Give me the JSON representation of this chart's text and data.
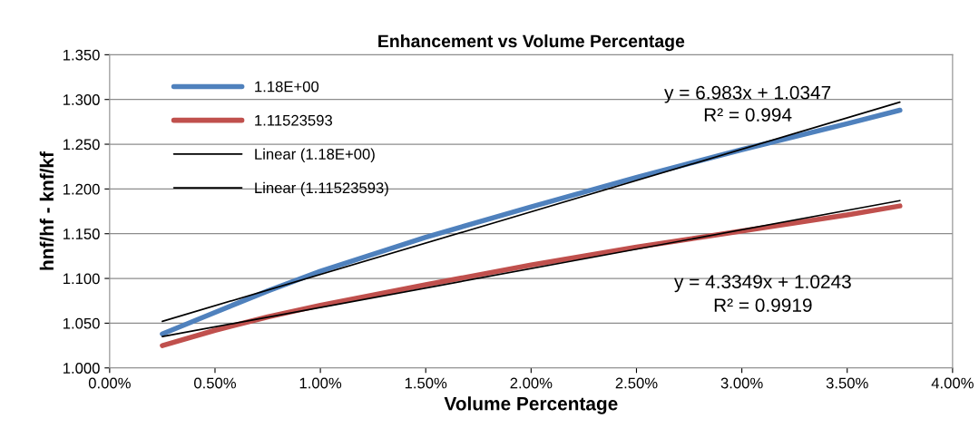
{
  "chart_data": {
    "type": "line",
    "title": "Enhancement vs Volume Percentage",
    "xlabel": "Volume Percentage",
    "ylabel": "hnf/hf - knf/kf",
    "series": [
      {
        "name": "1.18E+00",
        "color": "#4f81bd",
        "x": [
          0.0025,
          0.005,
          0.0075,
          0.01,
          0.015,
          0.02,
          0.025,
          0.03,
          0.035,
          0.0375
        ],
        "values": [
          1.038,
          1.062,
          1.086,
          1.108,
          1.146,
          1.18,
          1.213,
          1.244,
          1.273,
          1.288
        ]
      },
      {
        "name": "1.11523593",
        "color": "#c0504d",
        "x": [
          0.0025,
          0.005,
          0.0075,
          0.01,
          0.015,
          0.02,
          0.025,
          0.03,
          0.035,
          0.0375
        ],
        "values": [
          1.025,
          1.042,
          1.057,
          1.07,
          1.093,
          1.115,
          1.135,
          1.153,
          1.171,
          1.181
        ]
      },
      {
        "name": "Linear (1.18E+00)",
        "color": "#000000",
        "x": [
          0.0025,
          0.0375
        ],
        "values": [
          1.052,
          1.297
        ]
      },
      {
        "name": "Linear (1.11523593)",
        "color": "#000000",
        "x": [
          0.0025,
          0.0375
        ],
        "values": [
          1.035,
          1.187
        ]
      }
    ],
    "xlim": [
      0,
      0.04
    ],
    "xticks": [
      {
        "value": 0,
        "label": "0.00%"
      },
      {
        "value": 0.005,
        "label": "0.50%"
      },
      {
        "value": 0.01,
        "label": "1.00%"
      },
      {
        "value": 0.015,
        "label": "1.50%"
      },
      {
        "value": 0.02,
        "label": "2.00%"
      },
      {
        "value": 0.025,
        "label": "2.50%"
      },
      {
        "value": 0.03,
        "label": "3.00%"
      },
      {
        "value": 0.035,
        "label": "3.50%"
      },
      {
        "value": 0.04,
        "label": "4.00%"
      }
    ],
    "ylim": [
      1.0,
      1.35
    ],
    "yticks": [
      {
        "value": 1.0,
        "label": "1.000"
      },
      {
        "value": 1.05,
        "label": "1.050"
      },
      {
        "value": 1.1,
        "label": "1.100"
      },
      {
        "value": 1.15,
        "label": "1.150"
      },
      {
        "value": 1.2,
        "label": "1.200"
      },
      {
        "value": 1.25,
        "label": "1.250"
      },
      {
        "value": 1.3,
        "label": "1.300"
      },
      {
        "value": 1.35,
        "label": "1.350"
      }
    ],
    "annotations": [
      "y = 6.983x + 1.0347",
      "R² = 0.994",
      "y = 4.3349x + 1.0243",
      "R² = 0.9919"
    ],
    "grid": "y",
    "legend": "top left",
    "marker": "none",
    "line_style": "solid"
  }
}
